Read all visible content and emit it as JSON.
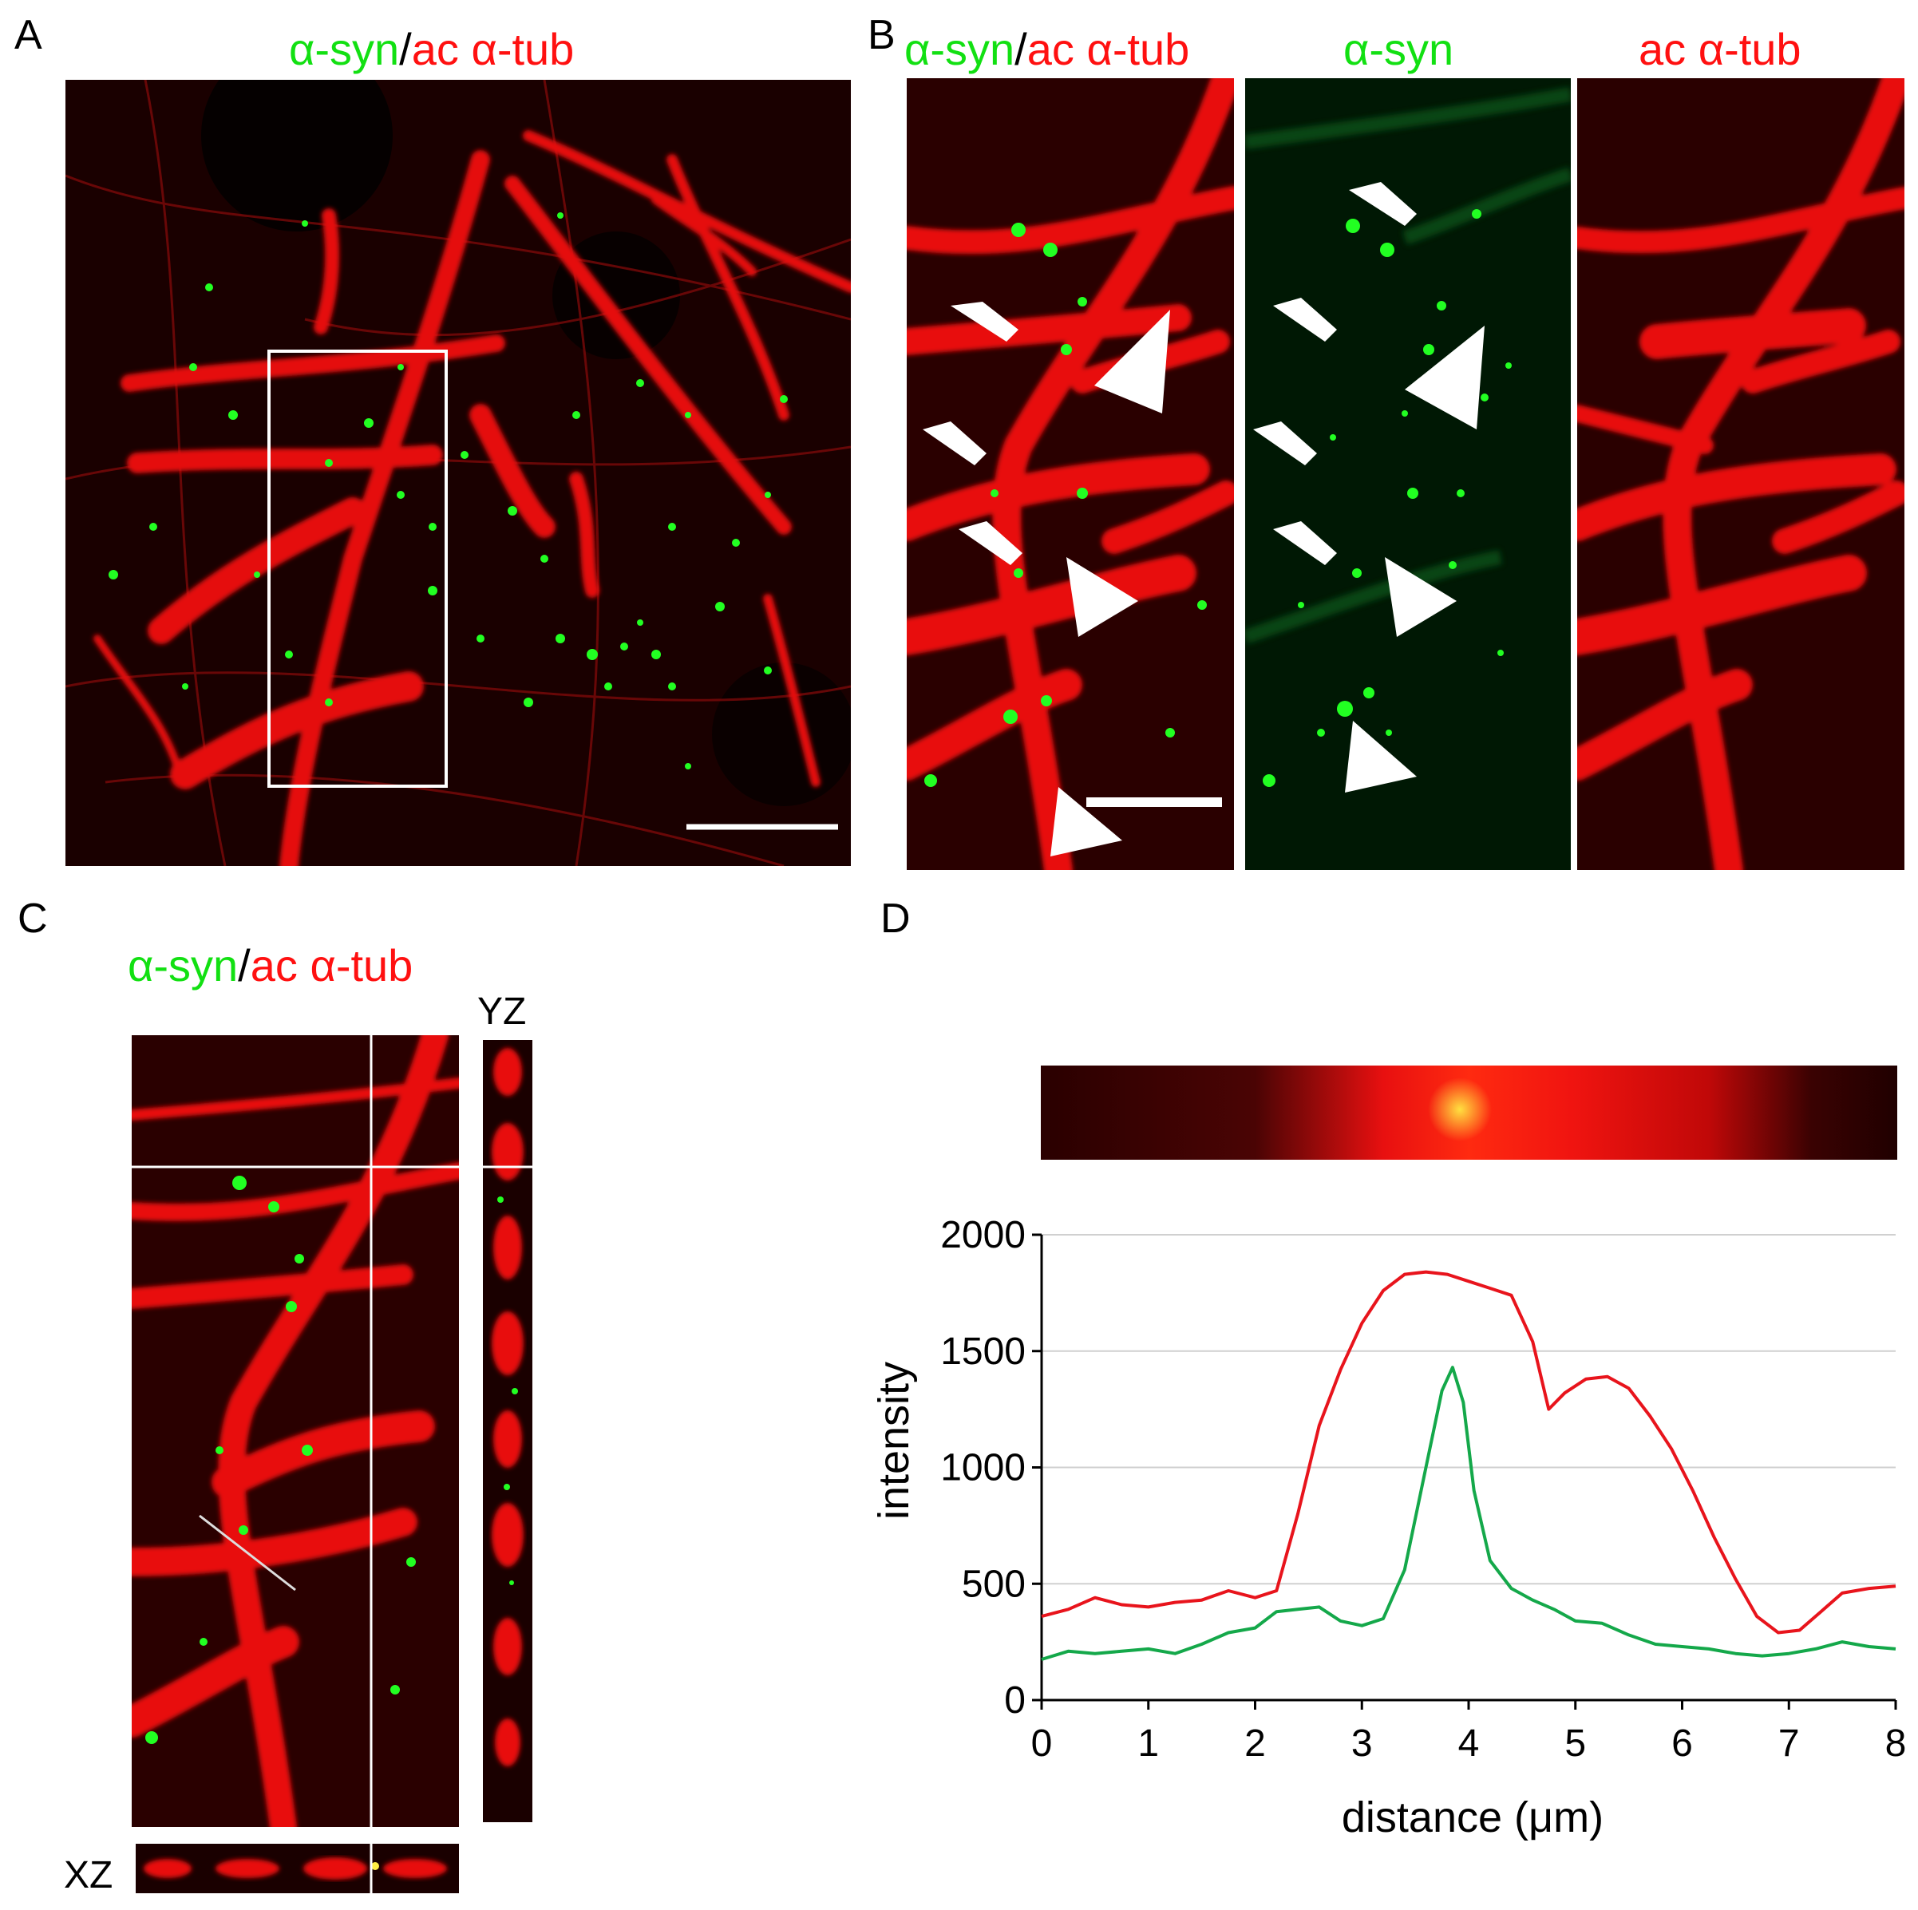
{
  "panels": {
    "A": {
      "label": "A",
      "title": {
        "green": "α-syn",
        "sep": "/",
        "red": "ac α-tub"
      }
    },
    "B": {
      "label": "B",
      "titles": [
        {
          "green": "α-syn",
          "sep": "/",
          "red": "ac α-tub"
        },
        {
          "green": "α-syn"
        },
        {
          "red": "ac α-tub"
        }
      ]
    },
    "C": {
      "label": "C",
      "title": {
        "green": "α-syn",
        "sep": "/",
        "red": "ac α-tub"
      },
      "yz_label": "YZ",
      "xz_label": "XZ"
    },
    "D": {
      "label": "D"
    }
  },
  "colors": {
    "green": "#12e012",
    "red": "#ff1010",
    "line_red": "#e8141c",
    "line_green": "#14a84a"
  },
  "chart_data": {
    "type": "line",
    "xlabel": "distance (μm)",
    "ylabel": "intensity",
    "xlim": [
      0,
      8
    ],
    "ylim": [
      0,
      2000
    ],
    "xticks": [
      "0",
      "1",
      "2",
      "3",
      "4",
      "5",
      "6",
      "7",
      "8"
    ],
    "yticks": [
      "0",
      "500",
      "1000",
      "1500",
      "2000"
    ],
    "grid": "horizontal",
    "series": [
      {
        "color": "red",
        "x": [
          0,
          0.25,
          0.5,
          0.75,
          1,
          1.25,
          1.5,
          1.75,
          2,
          2.2,
          2.4,
          2.6,
          2.8,
          3,
          3.2,
          3.4,
          3.6,
          3.8,
          4,
          4.2,
          4.4,
          4.6,
          4.75,
          4.9,
          5.1,
          5.3,
          5.5,
          5.7,
          5.9,
          6.1,
          6.3,
          6.5,
          6.7,
          6.9,
          7.1,
          7.3,
          7.5,
          7.75,
          8
        ],
        "y": [
          360,
          390,
          440,
          410,
          400,
          420,
          430,
          470,
          440,
          470,
          800,
          1180,
          1420,
          1620,
          1760,
          1830,
          1840,
          1830,
          1800,
          1770,
          1740,
          1540,
          1250,
          1320,
          1380,
          1390,
          1340,
          1220,
          1080,
          900,
          700,
          520,
          360,
          290,
          300,
          380,
          460,
          480,
          490
        ]
      },
      {
        "color": "green",
        "x": [
          0,
          0.25,
          0.5,
          0.75,
          1,
          1.25,
          1.5,
          1.75,
          2,
          2.2,
          2.4,
          2.6,
          2.8,
          3,
          3.2,
          3.4,
          3.6,
          3.75,
          3.85,
          3.95,
          4.05,
          4.2,
          4.4,
          4.6,
          4.8,
          5,
          5.25,
          5.5,
          5.75,
          6,
          6.25,
          6.5,
          6.75,
          7,
          7.25,
          7.5,
          7.75,
          8
        ],
        "y": [
          175,
          210,
          200,
          210,
          220,
          200,
          240,
          290,
          310,
          380,
          390,
          400,
          340,
          320,
          350,
          560,
          1000,
          1330,
          1430,
          1280,
          900,
          600,
          480,
          430,
          390,
          340,
          330,
          280,
          240,
          230,
          220,
          200,
          190,
          200,
          220,
          250,
          230,
          220
        ]
      }
    ]
  }
}
